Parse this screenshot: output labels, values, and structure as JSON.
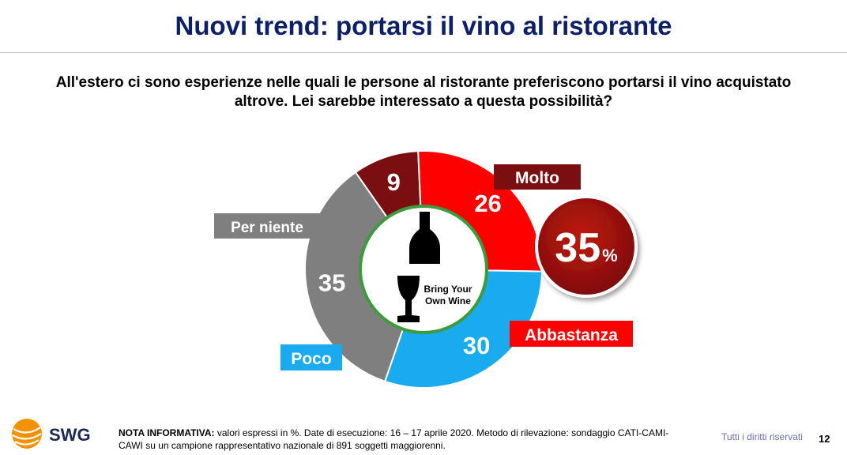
{
  "title": "Nuovi trend: portarsi il vino al ristorante",
  "question_line1": "All'estero ci sono esperienze nelle quali le persone al ristorante preferiscono portarsi il vino acquistato",
  "question_line2": "altrove.  Lei sarebbe interessato a questa possibilità?",
  "chart_data": {
    "type": "pie",
    "variant": "donut",
    "unit": "%",
    "slices": [
      {
        "label": "Molto",
        "value": 9,
        "color": "#7a0e10"
      },
      {
        "label": "Abbastanza",
        "value": 26,
        "color": "#ff0000"
      },
      {
        "label": "Poco",
        "value": 30,
        "color": "#1aabef"
      },
      {
        "label": "Per niente",
        "value": 35,
        "color": "#7f7f7f"
      }
    ],
    "total_badge": {
      "value": "35",
      "unit": "%"
    },
    "center_text": [
      "Bring Your",
      "Own Wine"
    ]
  },
  "footer": {
    "note_label": "NOTA INFORMATIVA:",
    "note_text": " valori espressi in %. Date di esecuzione: 16 – 17 aprile 2020. Metodo di rilevazione: sondaggio CATI-CAMI-CAWI su un campione rappresentativo nazionale di 891 soggetti maggiorenni.",
    "rights": "Tutti i diritti riservati",
    "page": "12"
  },
  "logo": {
    "text": "SWG",
    "icon": "globe-icon",
    "color": "#f39200"
  }
}
